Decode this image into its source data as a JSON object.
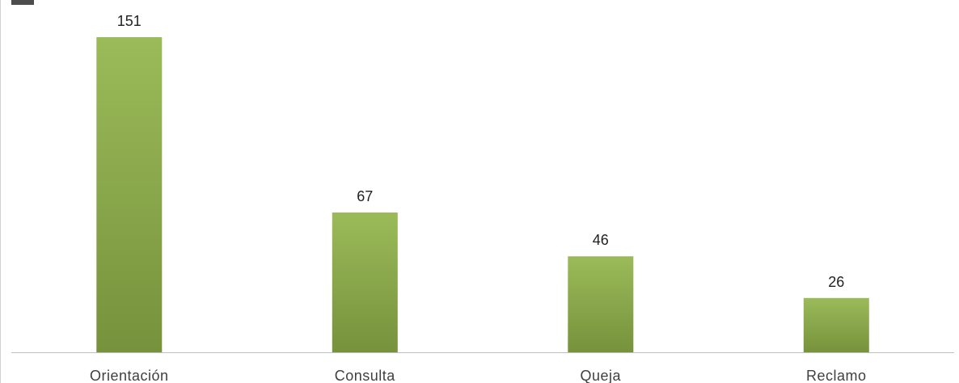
{
  "chart_data": {
    "type": "bar",
    "categories": [
      "Orientación",
      "Consulta",
      "Queja",
      "Reclamo"
    ],
    "values": [
      151,
      67,
      46,
      26
    ],
    "data_labels": [
      "151",
      "67",
      "46",
      "26"
    ],
    "ylim": [
      0,
      151
    ],
    "grid": false,
    "legend": "none",
    "colors": {
      "bar_top": "#9bbb59",
      "bar_bottom": "#76923c",
      "axis": "#bfbfbf"
    }
  }
}
